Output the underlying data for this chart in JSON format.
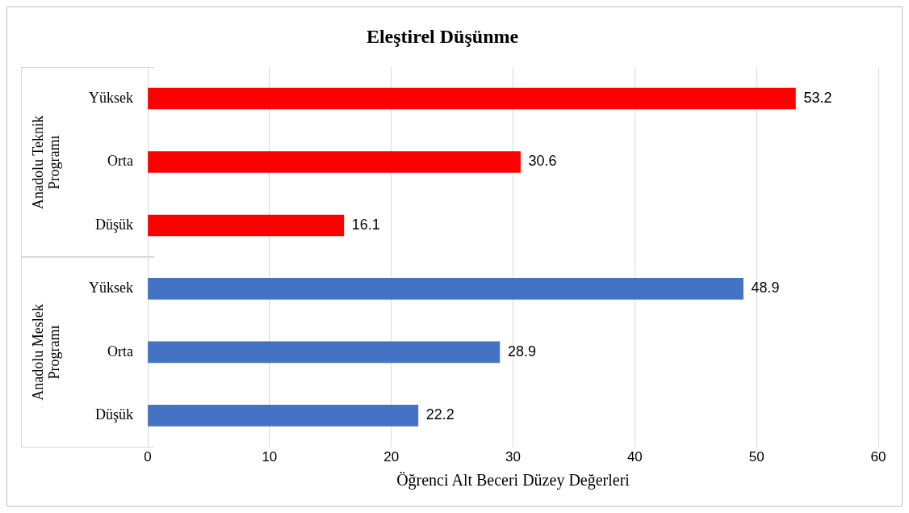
{
  "chart_data": {
    "type": "bar",
    "orientation": "horizontal",
    "title": "Eleştirel Düşünme",
    "xlabel": "Öğrenci Alt Beceri Düzey Değerleri",
    "categories": [
      "Yüksek",
      "Orta",
      "Düşük",
      "Yüksek",
      "Orta",
      "Düşük"
    ],
    "series": [
      {
        "color": "#ff0000",
        "values": [
          53.2,
          30.6,
          16.1,
          null,
          null,
          null
        ]
      },
      {
        "color": "#4472c4",
        "values": [
          null,
          null,
          null,
          48.9,
          28.9,
          22.2
        ]
      }
    ],
    "annotations": [
      "Anadolu Teknik Programı",
      "Anadolu Meslek Programı"
    ],
    "xlim": [
      0,
      60
    ],
    "xticks": [
      0,
      10,
      20,
      30,
      40,
      50,
      60
    ],
    "grid": "x",
    "legend": false,
    "data_labels": true
  }
}
